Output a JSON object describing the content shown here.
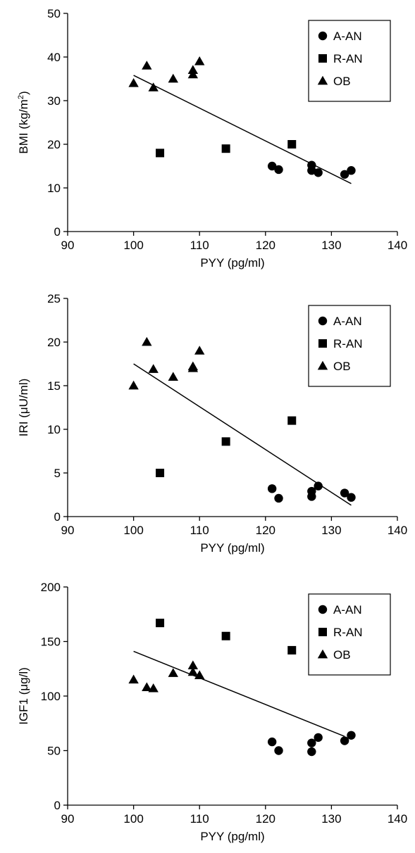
{
  "chart_data": [
    {
      "type": "scatter",
      "xlabel": "PYY (pg/ml)",
      "ylabel": "BMI (kg/m²)",
      "ylabel_parts": {
        "base": "BMI (kg/m",
        "sup": "2",
        "end": ")"
      },
      "xlim": [
        90,
        140
      ],
      "ylim": [
        0,
        50
      ],
      "xticks": [
        90,
        100,
        110,
        120,
        130,
        140
      ],
      "yticks": [
        0,
        10,
        20,
        30,
        40,
        50
      ],
      "legend_position": "top-right",
      "grid": false,
      "series": [
        {
          "name": "A-AN",
          "marker": "circle",
          "points": [
            [
              121,
              15
            ],
            [
              122,
              14.2
            ],
            [
              127,
              15.2
            ],
            [
              127,
              14
            ],
            [
              128,
              13.5
            ],
            [
              132,
              13.1
            ],
            [
              133,
              14
            ]
          ]
        },
        {
          "name": "R-AN",
          "marker": "square",
          "points": [
            [
              104,
              18
            ],
            [
              114,
              19
            ],
            [
              124,
              20
            ]
          ]
        },
        {
          "name": "OB",
          "marker": "triangle",
          "points": [
            [
              100,
              34
            ],
            [
              102,
              38
            ],
            [
              103,
              33
            ],
            [
              106,
              35
            ],
            [
              109,
              37
            ],
            [
              109,
              36
            ],
            [
              110,
              39
            ]
          ]
        }
      ],
      "trendline": {
        "x": [
          100,
          133
        ],
        "y": [
          35.8,
          11
        ]
      }
    },
    {
      "type": "scatter",
      "xlabel": "PYY (pg/ml)",
      "ylabel": "IRI (μU/ml)",
      "xlim": [
        90,
        140
      ],
      "ylim": [
        0,
        25
      ],
      "xticks": [
        90,
        100,
        110,
        120,
        130,
        140
      ],
      "yticks": [
        0,
        5,
        10,
        15,
        20,
        25
      ],
      "legend_position": "top-right",
      "grid": false,
      "series": [
        {
          "name": "A-AN",
          "marker": "circle",
          "points": [
            [
              121,
              3.2
            ],
            [
              122,
              2.1
            ],
            [
              127,
              2.9
            ],
            [
              127,
              2.3
            ],
            [
              128,
              3.5
            ],
            [
              132,
              2.7
            ],
            [
              133,
              2.2
            ]
          ]
        },
        {
          "name": "R-AN",
          "marker": "square",
          "points": [
            [
              104,
              5
            ],
            [
              114,
              8.6
            ],
            [
              124,
              11
            ]
          ]
        },
        {
          "name": "OB",
          "marker": "triangle",
          "points": [
            [
              100,
              15
            ],
            [
              102,
              20
            ],
            [
              103,
              16.9
            ],
            [
              106,
              16
            ],
            [
              109,
              17.2
            ],
            [
              109,
              17
            ],
            [
              110,
              19
            ]
          ]
        }
      ],
      "trendline": {
        "x": [
          100,
          133
        ],
        "y": [
          17.5,
          1.3
        ]
      }
    },
    {
      "type": "scatter",
      "xlabel": "PYY (pg/ml)",
      "ylabel": "IGF1 (μg/l)",
      "xlim": [
        90,
        140
      ],
      "ylim": [
        0,
        200
      ],
      "xticks": [
        90,
        100,
        110,
        120,
        130,
        140
      ],
      "yticks": [
        0,
        50,
        100,
        150,
        200
      ],
      "legend_position": "top-right",
      "grid": false,
      "series": [
        {
          "name": "A-AN",
          "marker": "circle",
          "points": [
            [
              121,
              58
            ],
            [
              122,
              50
            ],
            [
              127,
              57
            ],
            [
              127,
              49
            ],
            [
              128,
              62
            ],
            [
              132,
              59
            ],
            [
              133,
              64
            ]
          ]
        },
        {
          "name": "R-AN",
          "marker": "square",
          "points": [
            [
              104,
              167
            ],
            [
              114,
              155
            ],
            [
              124,
              142
            ]
          ]
        },
        {
          "name": "OB",
          "marker": "triangle",
          "points": [
            [
              100,
              115
            ],
            [
              102,
              108
            ],
            [
              103,
              107
            ],
            [
              106,
              121
            ],
            [
              109,
              128
            ],
            [
              109,
              122
            ],
            [
              110,
              119
            ]
          ]
        }
      ],
      "trendline": {
        "x": [
          100,
          132
        ],
        "y": [
          141,
          63
        ]
      }
    }
  ]
}
